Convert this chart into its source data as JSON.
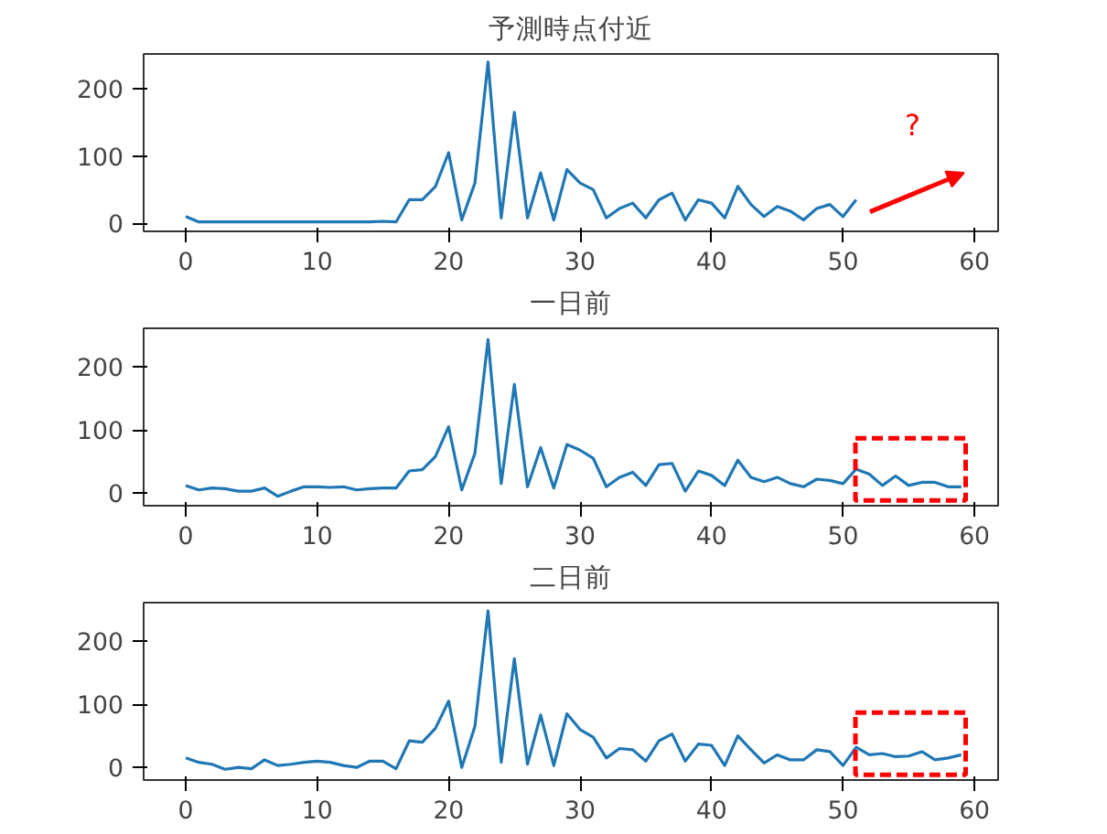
{
  "chart_data": [
    {
      "type": "line",
      "title": "予測時点付近",
      "x": [
        0,
        1,
        2,
        3,
        4,
        5,
        6,
        7,
        8,
        9,
        10,
        11,
        12,
        13,
        14,
        15,
        16,
        17,
        18,
        19,
        20,
        21,
        22,
        23,
        24,
        25,
        26,
        27,
        28,
        29,
        30,
        31,
        32,
        33,
        34,
        35,
        36,
        37,
        38,
        39,
        40,
        41,
        42,
        43,
        44,
        45,
        46,
        47,
        48,
        49,
        50,
        51
      ],
      "series": [
        {
          "color": "#1f77b4",
          "values": [
            10,
            2,
            2,
            2,
            2,
            2,
            2,
            2,
            2,
            2,
            2,
            2,
            2,
            2,
            2,
            3,
            2,
            35,
            35,
            55,
            105,
            5,
            60,
            240,
            8,
            165,
            8,
            75,
            5,
            80,
            60,
            50,
            8,
            22,
            30,
            8,
            35,
            45,
            5,
            35,
            30,
            8,
            55,
            28,
            10,
            25,
            18,
            5,
            22,
            28,
            10,
            35
          ]
        }
      ],
      "xlim": [
        -3.2,
        61.8
      ],
      "ylim": [
        -12,
        252
      ],
      "xticks": [
        0,
        10,
        20,
        30,
        40,
        50,
        60
      ],
      "yticks": [
        0,
        100,
        200
      ],
      "annotations": [
        "?"
      ]
    },
    {
      "type": "line",
      "title": "一日前",
      "x": [
        0,
        1,
        2,
        3,
        4,
        5,
        6,
        7,
        8,
        9,
        10,
        11,
        12,
        13,
        14,
        15,
        16,
        17,
        18,
        19,
        20,
        21,
        22,
        23,
        24,
        25,
        26,
        27,
        28,
        29,
        30,
        31,
        32,
        33,
        34,
        35,
        36,
        37,
        38,
        39,
        40,
        41,
        42,
        43,
        44,
        45,
        46,
        47,
        48,
        49,
        50,
        51,
        52,
        53,
        54,
        55,
        56,
        57,
        58,
        59
      ],
      "series": [
        {
          "color": "#1f77b4",
          "values": [
            12,
            5,
            8,
            7,
            3,
            3,
            8,
            -5,
            3,
            10,
            10,
            9,
            10,
            5,
            7,
            8,
            8,
            35,
            37,
            58,
            105,
            5,
            63,
            243,
            15,
            172,
            10,
            72,
            8,
            77,
            68,
            55,
            10,
            25,
            33,
            12,
            45,
            47,
            3,
            35,
            28,
            12,
            52,
            25,
            18,
            25,
            15,
            10,
            22,
            20,
            15,
            38,
            30,
            12,
            27,
            12,
            17,
            17,
            10,
            10
          ]
        }
      ],
      "xlim": [
        -3.2,
        61.8
      ],
      "ylim": [
        -20,
        261
      ],
      "xticks": [
        0,
        10,
        20,
        30,
        40,
        50,
        60
      ],
      "yticks": [
        0,
        100,
        200
      ]
    },
    {
      "type": "line",
      "title": "二日前",
      "x": [
        0,
        1,
        2,
        3,
        4,
        5,
        6,
        7,
        8,
        9,
        10,
        11,
        12,
        13,
        14,
        15,
        16,
        17,
        18,
        19,
        20,
        21,
        22,
        23,
        24,
        25,
        26,
        27,
        28,
        29,
        30,
        31,
        32,
        33,
        34,
        35,
        36,
        37,
        38,
        39,
        40,
        41,
        42,
        43,
        44,
        45,
        46,
        47,
        48,
        49,
        50,
        51,
        52,
        53,
        54,
        55,
        56,
        57,
        58,
        59
      ],
      "series": [
        {
          "color": "#1f77b4",
          "values": [
            15,
            8,
            5,
            -3,
            0,
            -2,
            12,
            3,
            5,
            8,
            10,
            8,
            3,
            0,
            10,
            10,
            -2,
            42,
            40,
            62,
            105,
            0,
            65,
            248,
            8,
            172,
            5,
            83,
            3,
            85,
            60,
            48,
            15,
            30,
            28,
            10,
            42,
            53,
            10,
            37,
            35,
            3,
            50,
            28,
            7,
            20,
            12,
            12,
            28,
            25,
            3,
            32,
            20,
            22,
            17,
            18,
            25,
            12,
            15,
            20
          ]
        }
      ],
      "xlim": [
        -3.2,
        61.8
      ],
      "ylim": [
        -20,
        261
      ],
      "xticks": [
        0,
        10,
        20,
        30,
        40,
        50,
        60
      ],
      "yticks": [
        0,
        100,
        200
      ]
    }
  ]
}
